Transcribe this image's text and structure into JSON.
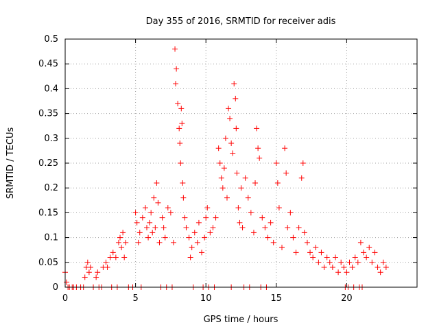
{
  "chart_data": {
    "type": "scatter",
    "title": "Day 355 of 2016, SRMTID for receiver adis",
    "xlabel": "GPS time / hours",
    "ylabel": "SRMTID / TECUs",
    "xlim": [
      0,
      25
    ],
    "ylim": [
      0,
      0.5
    ],
    "xticks": [
      0,
      5,
      10,
      15,
      20
    ],
    "xtick_labels": [
      "0",
      "5",
      "10",
      "15",
      "20"
    ],
    "yticks": [
      0,
      0.05,
      0.1,
      0.15,
      0.2,
      0.25,
      0.3,
      0.35,
      0.4,
      0.45,
      0.5
    ],
    "ytick_labels": [
      "0",
      "0.05",
      "0.1",
      "0.15",
      "0.2",
      "0.25",
      "0.3",
      "0.35",
      "0.4",
      "0.45",
      "0.5"
    ],
    "grid": true,
    "marker": "+",
    "color": "#ff0000",
    "series": [
      {
        "name": "SRMTID",
        "points": [
          [
            0.0,
            0.03
          ],
          [
            0.1,
            0.01
          ],
          [
            0.3,
            0.0
          ],
          [
            0.6,
            0.0
          ],
          [
            1.4,
            0.02
          ],
          [
            1.5,
            0.04
          ],
          [
            1.6,
            0.05
          ],
          [
            1.7,
            0.03
          ],
          [
            1.8,
            0.04
          ],
          [
            2.0,
            0.0
          ],
          [
            2.2,
            0.02
          ],
          [
            2.3,
            0.03
          ],
          [
            2.7,
            0.04
          ],
          [
            2.9,
            0.05
          ],
          [
            3.0,
            0.04
          ],
          [
            3.2,
            0.06
          ],
          [
            3.4,
            0.07
          ],
          [
            3.6,
            0.06
          ],
          [
            3.8,
            0.09
          ],
          [
            3.9,
            0.1
          ],
          [
            4.0,
            0.08
          ],
          [
            4.1,
            0.11
          ],
          [
            4.2,
            0.06
          ],
          [
            4.3,
            0.09
          ],
          [
            5.0,
            0.15
          ],
          [
            5.1,
            0.13
          ],
          [
            5.2,
            0.09
          ],
          [
            5.3,
            0.11
          ],
          [
            5.5,
            0.14
          ],
          [
            5.7,
            0.16
          ],
          [
            5.8,
            0.12
          ],
          [
            5.9,
            0.1
          ],
          [
            6.0,
            0.13
          ],
          [
            6.1,
            0.15
          ],
          [
            6.2,
            0.11
          ],
          [
            6.3,
            0.18
          ],
          [
            6.4,
            0.12
          ],
          [
            6.5,
            0.21
          ],
          [
            6.6,
            0.17
          ],
          [
            6.7,
            0.09
          ],
          [
            6.9,
            0.14
          ],
          [
            7.0,
            0.12
          ],
          [
            7.1,
            0.1
          ],
          [
            7.3,
            0.16
          ],
          [
            7.5,
            0.15
          ],
          [
            7.7,
            0.09
          ],
          [
            7.8,
            0.48
          ],
          [
            7.85,
            0.41
          ],
          [
            7.9,
            0.44
          ],
          [
            8.0,
            0.37
          ],
          [
            8.1,
            0.32
          ],
          [
            8.15,
            0.29
          ],
          [
            8.2,
            0.25
          ],
          [
            8.25,
            0.36
          ],
          [
            8.3,
            0.33
          ],
          [
            8.35,
            0.21
          ],
          [
            8.4,
            0.18
          ],
          [
            8.5,
            0.14
          ],
          [
            8.6,
            0.12
          ],
          [
            8.8,
            0.1
          ],
          [
            8.9,
            0.06
          ],
          [
            9.0,
            0.08
          ],
          [
            9.2,
            0.11
          ],
          [
            9.4,
            0.09
          ],
          [
            9.5,
            0.13
          ],
          [
            9.7,
            0.07
          ],
          [
            9.9,
            0.1
          ],
          [
            10.0,
            0.14
          ],
          [
            10.1,
            0.16
          ],
          [
            10.3,
            0.11
          ],
          [
            10.5,
            0.12
          ],
          [
            10.7,
            0.14
          ],
          [
            10.9,
            0.28
          ],
          [
            11.0,
            0.25
          ],
          [
            11.1,
            0.22
          ],
          [
            11.2,
            0.2
          ],
          [
            11.3,
            0.24
          ],
          [
            11.4,
            0.3
          ],
          [
            11.5,
            0.18
          ],
          [
            11.6,
            0.36
          ],
          [
            11.7,
            0.34
          ],
          [
            11.8,
            0.29
          ],
          [
            11.9,
            0.27
          ],
          [
            12.0,
            0.41
          ],
          [
            12.1,
            0.38
          ],
          [
            12.15,
            0.32
          ],
          [
            12.2,
            0.23
          ],
          [
            12.3,
            0.16
          ],
          [
            12.4,
            0.13
          ],
          [
            12.5,
            0.2
          ],
          [
            12.6,
            0.12
          ],
          [
            12.8,
            0.22
          ],
          [
            13.0,
            0.18
          ],
          [
            13.2,
            0.15
          ],
          [
            13.4,
            0.11
          ],
          [
            13.5,
            0.21
          ],
          [
            13.6,
            0.32
          ],
          [
            13.7,
            0.28
          ],
          [
            13.8,
            0.26
          ],
          [
            14.0,
            0.14
          ],
          [
            14.2,
            0.12
          ],
          [
            14.4,
            0.1
          ],
          [
            14.6,
            0.13
          ],
          [
            14.8,
            0.09
          ],
          [
            15.0,
            0.25
          ],
          [
            15.1,
            0.21
          ],
          [
            15.2,
            0.16
          ],
          [
            15.4,
            0.08
          ],
          [
            15.6,
            0.28
          ],
          [
            15.7,
            0.23
          ],
          [
            15.8,
            0.12
          ],
          [
            16.0,
            0.15
          ],
          [
            16.2,
            0.1
          ],
          [
            16.4,
            0.07
          ],
          [
            16.6,
            0.12
          ],
          [
            16.8,
            0.22
          ],
          [
            16.9,
            0.25
          ],
          [
            17.0,
            0.11
          ],
          [
            17.2,
            0.09
          ],
          [
            17.4,
            0.07
          ],
          [
            17.6,
            0.06
          ],
          [
            17.8,
            0.08
          ],
          [
            18.0,
            0.05
          ],
          [
            18.2,
            0.07
          ],
          [
            18.4,
            0.04
          ],
          [
            18.6,
            0.06
          ],
          [
            18.8,
            0.05
          ],
          [
            19.0,
            0.04
          ],
          [
            19.2,
            0.06
          ],
          [
            19.4,
            0.03
          ],
          [
            19.6,
            0.05
          ],
          [
            19.8,
            0.04
          ],
          [
            20.0,
            0.03
          ],
          [
            20.2,
            0.05
          ],
          [
            20.4,
            0.04
          ],
          [
            20.6,
            0.06
          ],
          [
            20.8,
            0.05
          ],
          [
            21.0,
            0.09
          ],
          [
            21.2,
            0.07
          ],
          [
            21.4,
            0.06
          ],
          [
            21.6,
            0.08
          ],
          [
            21.8,
            0.05
          ],
          [
            22.0,
            0.07
          ],
          [
            22.2,
            0.04
          ],
          [
            22.4,
            0.03
          ],
          [
            22.6,
            0.05
          ],
          [
            22.8,
            0.04
          ],
          [
            0.2,
            0.0
          ],
          [
            0.5,
            0.0
          ],
          [
            0.8,
            0.0
          ],
          [
            1.1,
            0.0
          ],
          [
            1.3,
            0.0
          ],
          [
            2.4,
            0.0
          ],
          [
            2.6,
            0.0
          ],
          [
            3.3,
            0.0
          ],
          [
            3.7,
            0.0
          ],
          [
            4.5,
            0.0
          ],
          [
            4.8,
            0.0
          ],
          [
            5.4,
            0.0
          ],
          [
            6.8,
            0.0
          ],
          [
            7.2,
            0.0
          ],
          [
            7.6,
            0.0
          ],
          [
            9.1,
            0.0
          ],
          [
            9.8,
            0.0
          ],
          [
            10.2,
            0.0
          ],
          [
            10.6,
            0.0
          ],
          [
            11.8,
            0.0
          ],
          [
            12.7,
            0.0
          ],
          [
            13.1,
            0.0
          ],
          [
            13.9,
            0.0
          ],
          [
            14.3,
            0.0
          ],
          [
            19.9,
            0.0
          ],
          [
            20.1,
            0.0
          ],
          [
            20.5,
            0.0
          ],
          [
            20.9,
            0.0
          ],
          [
            21.1,
            0.0
          ]
        ]
      }
    ]
  }
}
